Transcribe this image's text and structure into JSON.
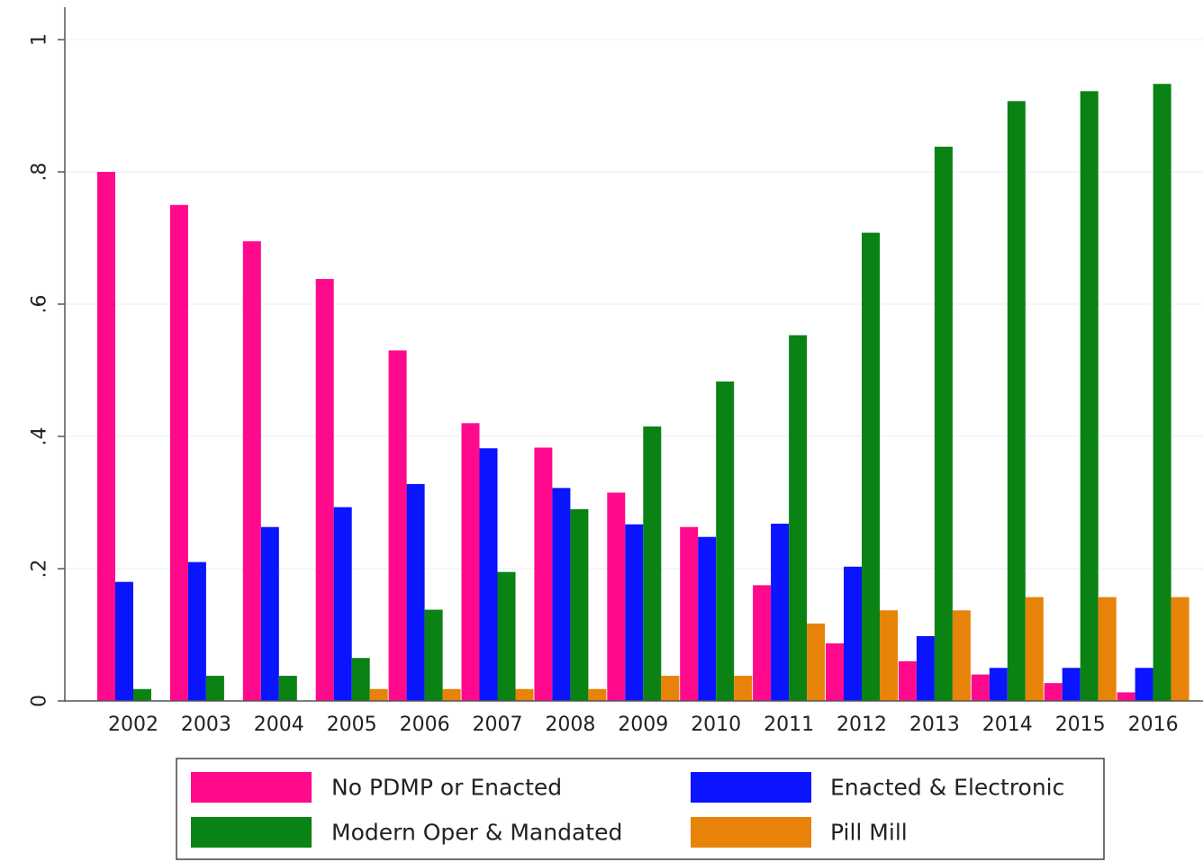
{
  "chart_data": {
    "type": "bar",
    "title": "",
    "xlabel": "",
    "ylabel": "",
    "ylim": [
      0,
      1
    ],
    "yticks": [
      0,
      0.2,
      0.4,
      0.6,
      0.8,
      1
    ],
    "ytick_labels": [
      "0",
      ".2",
      ".4",
      ".6",
      ".8",
      "1"
    ],
    "grid": true,
    "legend_position": "bottom",
    "categories": [
      "2002",
      "2003",
      "2004",
      "2005",
      "2006",
      "2007",
      "2008",
      "2009",
      "2010",
      "2011",
      "2012",
      "2013",
      "2014",
      "2015",
      "2016"
    ],
    "series": [
      {
        "name": "No PDMP or Enacted",
        "color": "#ff0a8c",
        "values": [
          0.8,
          0.75,
          0.695,
          0.638,
          0.53,
          0.42,
          0.383,
          0.315,
          0.263,
          0.175,
          0.087,
          0.06,
          0.04,
          0.027,
          0.013
        ]
      },
      {
        "name": "Enacted & Electronic",
        "color": "#0a14ff",
        "values": [
          0.18,
          0.21,
          0.263,
          0.293,
          0.328,
          0.382,
          0.322,
          0.267,
          0.248,
          0.268,
          0.203,
          0.098,
          0.05,
          0.05,
          0.05
        ]
      },
      {
        "name": "Modern Oper & Mandated",
        "color": "#0a8214",
        "values": [
          0.018,
          0.038,
          0.038,
          0.065,
          0.138,
          0.195,
          0.29,
          0.415,
          0.483,
          0.553,
          0.708,
          0.838,
          0.907,
          0.922,
          0.933
        ]
      },
      {
        "name": "Pill Mill",
        "color": "#e88309",
        "values": [
          0.0,
          0.0,
          0.0,
          0.018,
          0.018,
          0.018,
          0.018,
          0.038,
          0.038,
          0.117,
          0.137,
          0.137,
          0.157,
          0.157,
          0.157
        ]
      }
    ]
  }
}
